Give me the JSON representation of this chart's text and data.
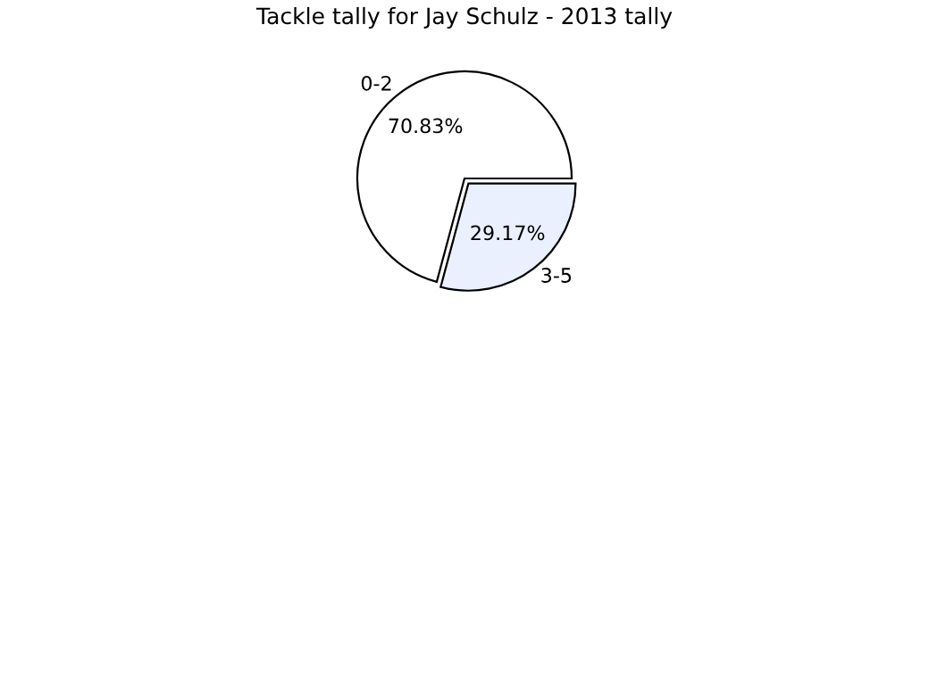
{
  "chart_data": {
    "type": "pie",
    "title": "Tackle tally for Jay Schulz - 2013 tally",
    "categories": [
      "0-2",
      "3-5"
    ],
    "values": [
      70.83,
      29.17
    ],
    "colors": [
      "#ffffff",
      "#eaf0fe"
    ],
    "value_labels": [
      "70.83%",
      "29.17%"
    ],
    "legend": false
  }
}
